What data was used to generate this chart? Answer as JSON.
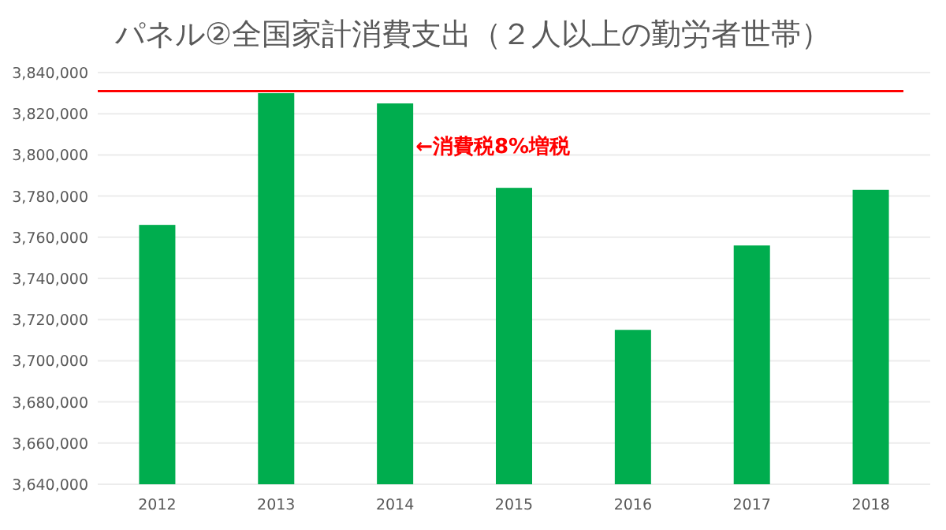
{
  "chart_data": {
    "type": "bar",
    "title": "パネル②全国家計消費支出（２人以上の勤労者世帯）",
    "categories": [
      "2012",
      "2013",
      "2014",
      "2015",
      "2016",
      "2017",
      "2018"
    ],
    "values": [
      3766000,
      3830000,
      3825000,
      3784000,
      3715000,
      3756000,
      3783000
    ],
    "color": "#00ad4e",
    "ylim": [
      3640000,
      3840000
    ],
    "yticks": [
      {
        "value": 3640000,
        "label": "3,640,000"
      },
      {
        "value": 3660000,
        "label": "3,660,000"
      },
      {
        "value": 3680000,
        "label": "3,680,000"
      },
      {
        "value": 3700000,
        "label": "3,700,000"
      },
      {
        "value": 3720000,
        "label": "3,720,000"
      },
      {
        "value": 3740000,
        "label": "3,740,000"
      },
      {
        "value": 3760000,
        "label": "3,760,000"
      },
      {
        "value": 3780000,
        "label": "3,780,000"
      },
      {
        "value": 3800000,
        "label": "3,800,000"
      },
      {
        "value": 3820000,
        "label": "3,820,000"
      },
      {
        "value": 3840000,
        "label": "3,840,000"
      }
    ],
    "grid": "y",
    "ref_lines": [
      {
        "axis": "y",
        "value": 3831000,
        "color": "#ff0000"
      }
    ],
    "annotations": [
      "←消費税8%増税"
    ]
  }
}
